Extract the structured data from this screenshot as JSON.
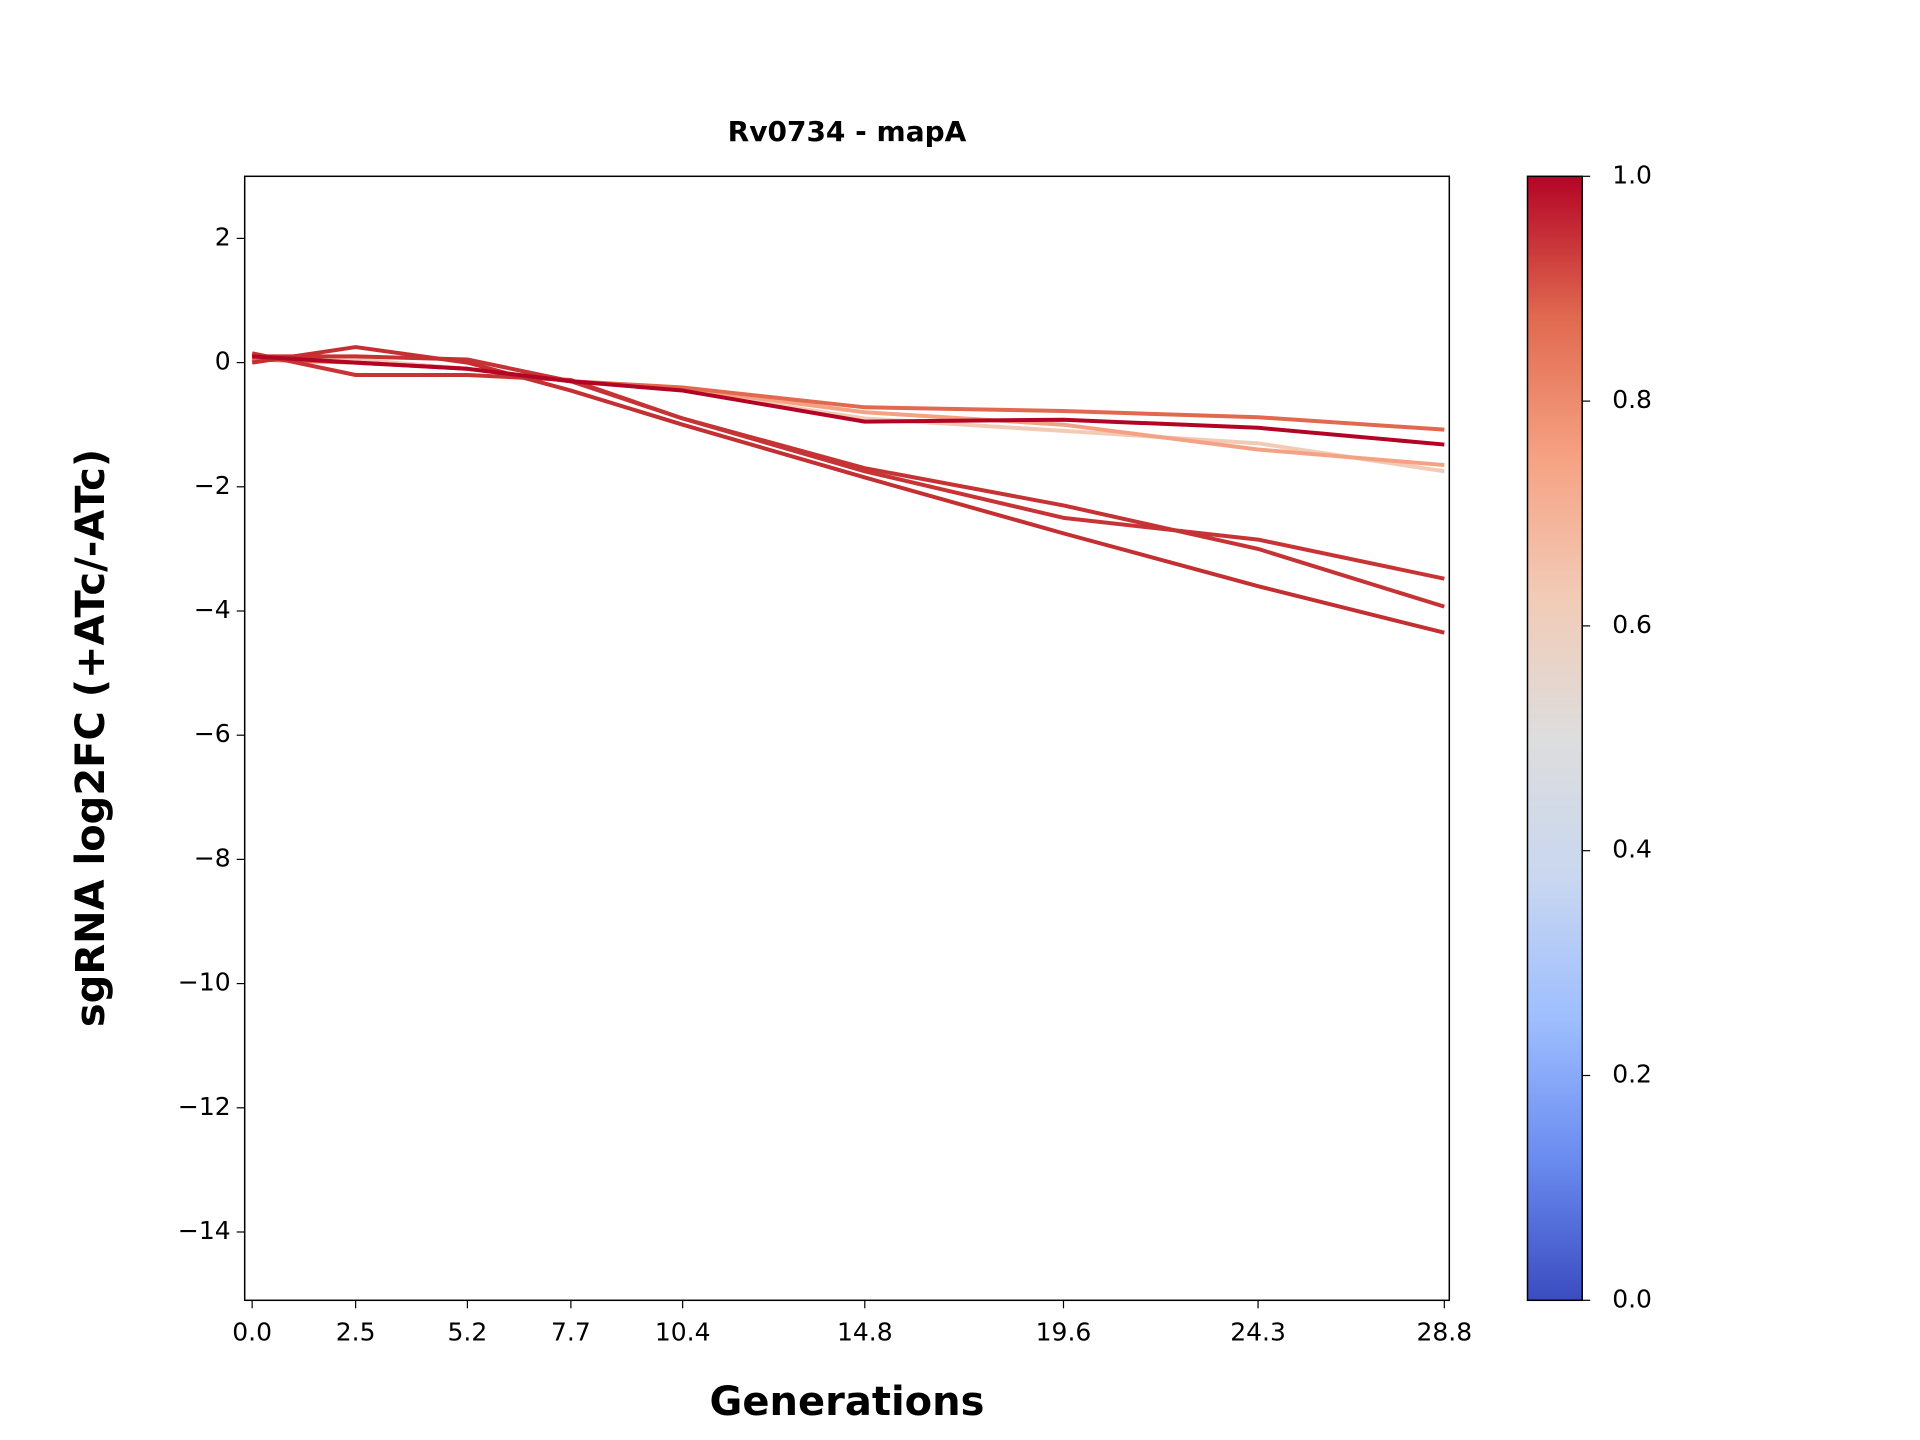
{
  "chart_data": {
    "type": "line",
    "title": "Rv0734 - mapA",
    "xlabel": "Generations",
    "ylabel": "sgRNA log2FC (+ATc/-ATc)",
    "x": [
      0,
      2.5,
      5.2,
      7.7,
      10.4,
      14.8,
      19.6,
      24.3,
      28.8
    ],
    "series": [
      {
        "color": "#f2cbb7",
        "values": [
          0.05,
          0.05,
          -0.1,
          -0.3,
          -0.45,
          -0.9,
          -1.1,
          -1.3,
          -1.75
        ]
      },
      {
        "color": "#f4a283",
        "values": [
          0.1,
          0.0,
          -0.1,
          -0.3,
          -0.42,
          -0.8,
          -1.0,
          -1.4,
          -1.65
        ]
      },
      {
        "color": "#e0694f",
        "values": [
          0.05,
          0.0,
          -0.1,
          -0.3,
          -0.4,
          -0.72,
          -0.78,
          -0.88,
          -1.08
        ]
      },
      {
        "color": "#c83436",
        "values": [
          0.15,
          -0.2,
          -0.2,
          -0.28,
          -0.9,
          -1.75,
          -2.5,
          -2.85,
          -3.48
        ]
      },
      {
        "color": "#c53334",
        "values": [
          0.1,
          0.1,
          0.05,
          -0.3,
          -0.9,
          -1.7,
          -2.3,
          -3.0,
          -3.93
        ]
      },
      {
        "color": "#c42f31",
        "values": [
          0.0,
          0.25,
          0.0,
          -0.45,
          -1.0,
          -1.85,
          -2.75,
          -3.6,
          -4.35
        ]
      },
      {
        "color": "#b40426",
        "values": [
          0.1,
          0.0,
          -0.1,
          -0.3,
          -0.45,
          -0.95,
          -0.92,
          -1.05,
          -1.32
        ]
      }
    ],
    "xlim": [
      -0.18,
      28.92
    ],
    "ylim": [
      -15.1,
      3
    ],
    "xticks": [
      {
        "value": 0,
        "label": "0.0"
      },
      2.5,
      5.2,
      7.7,
      10.4,
      14.8,
      19.6,
      24.3,
      28.8
    ],
    "yticks": [
      {
        "value": -14,
        "label": "−14"
      },
      {
        "value": -12,
        "label": "−12"
      },
      {
        "value": -10,
        "label": "−10"
      },
      {
        "value": -8,
        "label": "−8"
      },
      {
        "value": -6,
        "label": "−6"
      },
      {
        "value": -4,
        "label": "−4"
      },
      {
        "value": -2,
        "label": "−2"
      },
      0,
      2
    ],
    "colorbar": {
      "lim": [
        0,
        1
      ],
      "ticks": [
        {
          "value": 0,
          "label": "0.0"
        },
        0.2,
        0.4,
        0.6,
        0.8,
        {
          "value": 1,
          "label": "1.0"
        }
      ],
      "colors": [
        "#3b4cc0",
        "#6a8bef",
        "#9ebeff",
        "#c9d7f0",
        "#dddddd",
        "#f2cbb7",
        "#f6a283",
        "#e0694f",
        "#b40426"
      ]
    }
  }
}
